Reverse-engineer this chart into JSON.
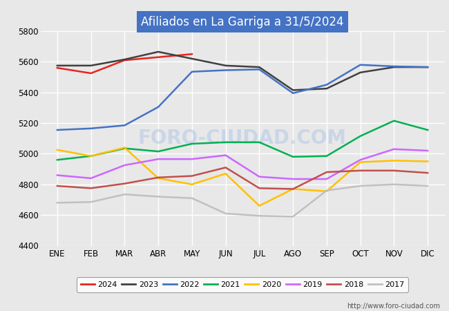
{
  "title": "Afiliados en La Garriga a 31/5/2024",
  "title_bg_color": "#4472c4",
  "ylim": [
    4400,
    5800
  ],
  "yticks": [
    4400,
    4600,
    4800,
    5000,
    5200,
    5400,
    5600,
    5800
  ],
  "months": [
    "ENE",
    "FEB",
    "MAR",
    "ABR",
    "MAY",
    "JUN",
    "JUL",
    "AGO",
    "SEP",
    "OCT",
    "NOV",
    "DIC"
  ],
  "series": {
    "2024": {
      "color": "#e8231e",
      "data": [
        5560,
        5525,
        5610,
        5630,
        5650,
        null,
        null,
        null,
        null,
        null,
        null,
        null
      ]
    },
    "2023": {
      "color": "#404040",
      "data": [
        5575,
        5575,
        5615,
        5665,
        5620,
        5575,
        5565,
        5415,
        5425,
        5530,
        5565,
        5565
      ]
    },
    "2022": {
      "color": "#4472c4",
      "data": [
        5155,
        5165,
        5185,
        5305,
        5535,
        5545,
        5550,
        5395,
        5450,
        5580,
        5570,
        5565
      ]
    },
    "2021": {
      "color": "#00b050",
      "data": [
        4960,
        4985,
        5035,
        5015,
        5065,
        5075,
        5075,
        4980,
        4985,
        5115,
        5215,
        5155
      ]
    },
    "2020": {
      "color": "#ffc000",
      "data": [
        5025,
        4985,
        5040,
        4840,
        4800,
        4870,
        4660,
        4770,
        4755,
        4945,
        4955,
        4950
      ]
    },
    "2019": {
      "color": "#cc66ff",
      "data": [
        4860,
        4840,
        4925,
        4965,
        4965,
        4990,
        4850,
        4835,
        4835,
        4960,
        5030,
        5020
      ]
    },
    "2018": {
      "color": "#c0504d",
      "data": [
        4790,
        4775,
        4805,
        4845,
        4855,
        4910,
        4775,
        4770,
        4880,
        4890,
        4890,
        4875
      ]
    },
    "2017": {
      "color": "#c0c0c0",
      "data": [
        4680,
        4685,
        4735,
        4720,
        4710,
        4610,
        4595,
        4590,
        4760,
        4790,
        4800,
        4790
      ]
    }
  },
  "watermark": "FORO-CIUDAD.COM",
  "url": "http://www.foro-ciudad.com",
  "bg_color": "#e8e8e8",
  "plot_bg_color": "#e8e8e8",
  "grid_color": "#ffffff"
}
